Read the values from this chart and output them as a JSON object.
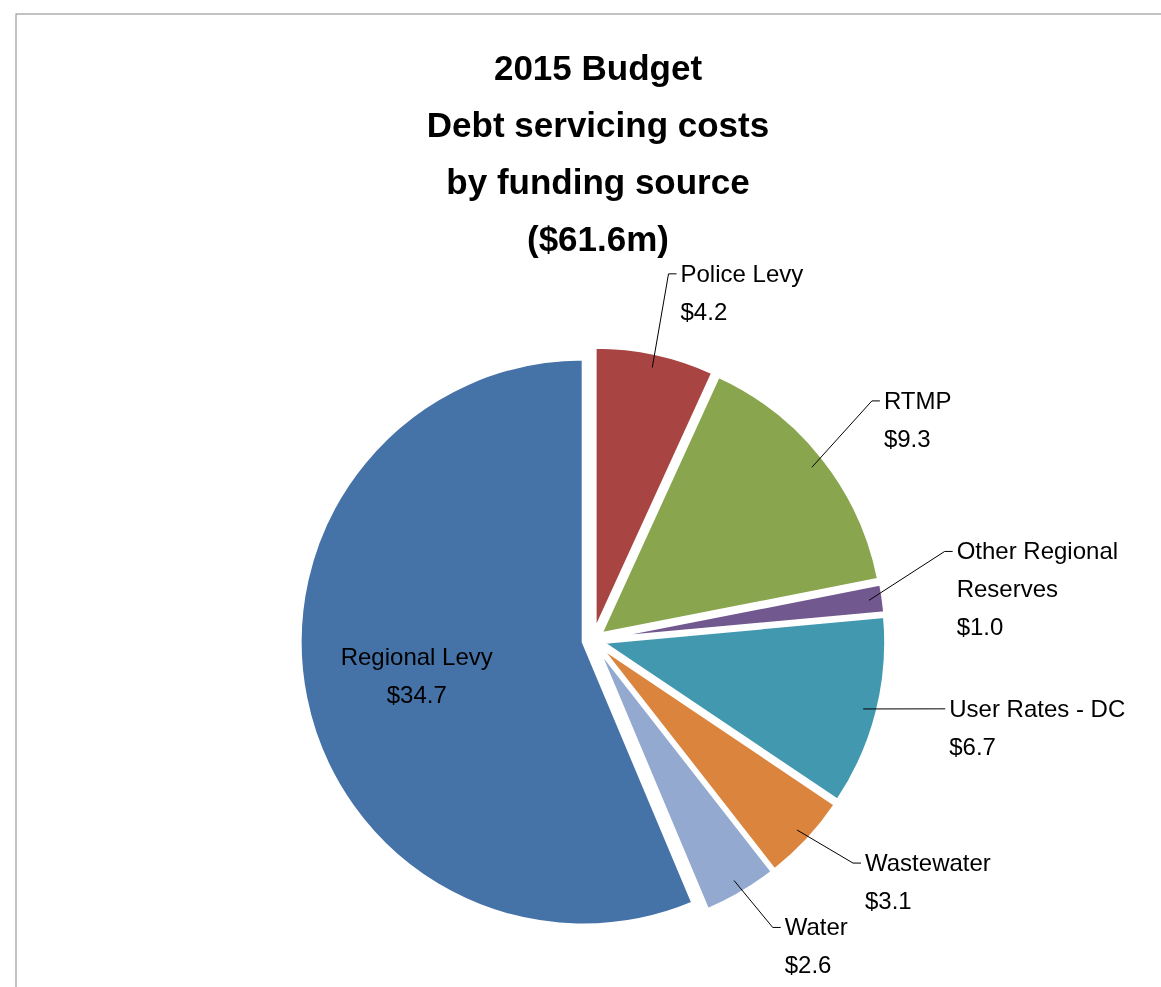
{
  "chart_data": {
    "type": "pie",
    "title": "2015 Budget\nDebt servicing costs\nby funding source\n($61.6m)",
    "categories": [
      "Police Levy",
      "RTMP",
      "Other Regional\nReserves",
      "User Rates - DC",
      "Wastewater",
      "Water",
      "Regional Levy"
    ],
    "values": [
      4.2,
      9.3,
      1.0,
      6.7,
      3.1,
      2.6,
      34.7
    ],
    "value_labels": [
      "$4.2",
      "$9.3",
      "$1.0",
      "$6.7",
      "$3.1",
      "$2.6",
      "$34.7"
    ],
    "colors": [
      "#a84543",
      "#89a54e",
      "#71588f",
      "#4198af",
      "#db843d",
      "#93a9cf",
      "#4572a7"
    ]
  }
}
